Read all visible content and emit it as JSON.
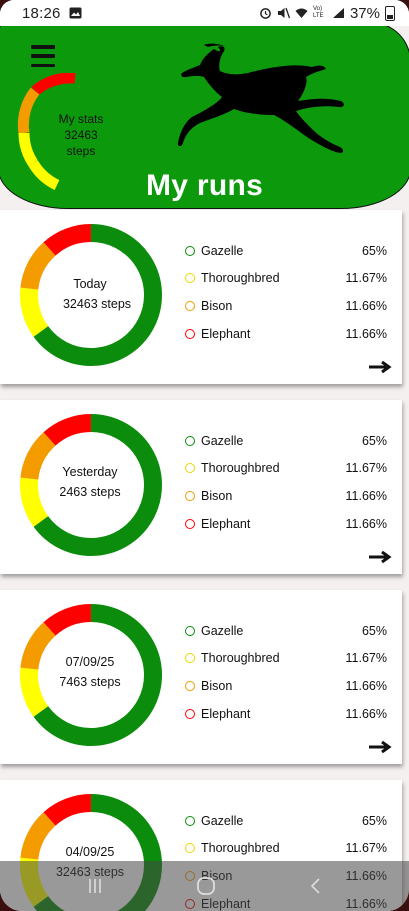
{
  "status": {
    "time": "18:26",
    "signal": "Vo) LTE",
    "battery": "37%"
  },
  "colors": {
    "green": "#0c8c0c",
    "yellow": "#ffff00",
    "orange": "#f49b00",
    "red": "#ff0000"
  },
  "header": {
    "stats_label": "My stats",
    "stats_steps": "32463 steps",
    "title": "My runs",
    "menu_icon": "menu-icon",
    "logo_icon": "gazelle-icon"
  },
  "runs": [
    {
      "date": "Today",
      "steps": "32463 steps",
      "share": {
        "green": 0.65,
        "yellow": 0.1167,
        "orange": 0.1166,
        "red": 0.1166
      },
      "legend": [
        {
          "name": "Gazelle",
          "pct": "65%"
        },
        {
          "name": "Thoroughbred",
          "pct": "11.67%"
        },
        {
          "name": "Bison",
          "pct": "11.66%"
        },
        {
          "name": "Elephant",
          "pct": "11.66%"
        }
      ]
    },
    {
      "date": "Yesterday",
      "steps": "2463 steps",
      "share": {
        "green": 0.65,
        "yellow": 0.1167,
        "orange": 0.1166,
        "red": 0.1166
      },
      "legend": [
        {
          "name": "Gazelle",
          "pct": "65%"
        },
        {
          "name": "Thoroughbred",
          "pct": "11.67%"
        },
        {
          "name": "Bison",
          "pct": "11.66%"
        },
        {
          "name": "Elephant",
          "pct": "11.66%"
        }
      ]
    },
    {
      "date": "07/09/25",
      "steps": "7463 steps",
      "share": {
        "green": 0.65,
        "yellow": 0.1167,
        "orange": 0.1166,
        "red": 0.1166
      },
      "legend": [
        {
          "name": "Gazelle",
          "pct": "65%"
        },
        {
          "name": "Thoroughbred",
          "pct": "11.67%"
        },
        {
          "name": "Bison",
          "pct": "11.66%"
        },
        {
          "name": "Elephant",
          "pct": "11.66%"
        }
      ]
    },
    {
      "date": "04/09/25",
      "steps": "32463 steps",
      "share": {
        "green": 0.65,
        "yellow": 0.1167,
        "orange": 0.1166,
        "red": 0.1166
      },
      "legend": [
        {
          "name": "Gazelle",
          "pct": "65%"
        },
        {
          "name": "Thoroughbred",
          "pct": "11.67%"
        },
        {
          "name": "Bison",
          "pct": "11.66%"
        },
        {
          "name": "Elephant",
          "pct": "11.66%"
        }
      ]
    }
  ],
  "navbar": {
    "recent_icon": "recent-apps-icon",
    "home_icon": "home-icon",
    "back_icon": "back-icon"
  }
}
